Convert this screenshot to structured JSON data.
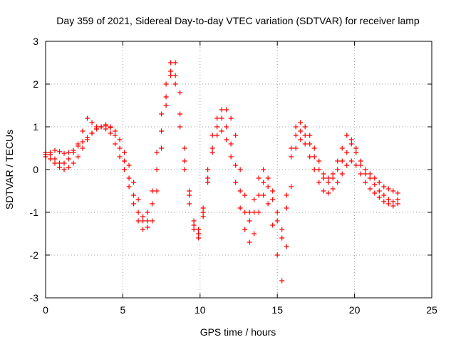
{
  "chart_data": {
    "type": "scatter",
    "title": "Day 359 of 2021, Sidereal Day-to-day VTEC variation (SDTVAR) for receiver lamp",
    "xlabel": "GPS time / hours",
    "ylabel": "SDTVAR / TECUs",
    "xlim": [
      0,
      25
    ],
    "ylim": [
      -3,
      3
    ],
    "xticks": [
      0,
      5,
      10,
      15,
      20,
      25
    ],
    "yticks": [
      -3,
      -2,
      -1,
      0,
      1,
      2,
      3
    ],
    "xtick_labels": [
      "0",
      "5",
      "10",
      "15",
      "20",
      "25"
    ],
    "ytick_labels": [
      "-3",
      "-2",
      "-1",
      "0",
      "1",
      "2",
      "3"
    ],
    "grid": true,
    "legend": "none",
    "marker": "+",
    "color": "#ff0000",
    "series": [
      {
        "x": [
          0.0,
          0.3,
          0.6,
          0.9,
          1.2,
          1.5,
          1.8,
          2.1,
          2.4,
          2.7,
          3.0,
          3.3,
          3.6,
          3.9,
          4.2,
          4.5,
          4.8,
          5.1,
          5.4,
          5.7,
          6.0,
          6.3,
          6.6,
          6.9,
          7.2,
          7.5,
          7.8,
          8.1,
          8.4,
          8.7,
          9.0,
          9.3,
          9.6,
          9.9,
          10.2,
          10.5,
          10.8,
          11.1,
          11.4,
          11.7,
          12.0,
          12.3,
          12.6,
          12.9,
          13.2,
          13.5,
          13.8,
          14.1,
          14.4,
          14.7,
          15.0,
          15.3,
          15.6,
          15.9,
          16.2,
          16.5,
          16.8,
          17.1,
          17.4,
          17.7,
          18.0,
          18.3,
          18.6,
          18.9,
          19.2,
          19.5,
          19.8,
          20.1,
          20.4,
          20.7,
          21.0,
          21.3,
          21.6,
          21.9,
          22.2,
          22.5,
          22.8
        ],
        "y": [
          0.35,
          0.4,
          0.45,
          0.42,
          0.38,
          0.4,
          0.45,
          0.55,
          0.65,
          0.75,
          0.85,
          0.95,
          1.0,
          1.02,
          0.98,
          0.9,
          0.7,
          0.4,
          0.1,
          -0.3,
          -0.7,
          -1.1,
          -1.35,
          -1.2,
          -0.5,
          0.5,
          1.5,
          2.2,
          2.5,
          1.8,
          0.5,
          -0.5,
          -1.2,
          -1.5,
          -1.1,
          -0.3,
          0.5,
          1.0,
          1.2,
          1.0,
          0.6,
          0.1,
          -0.5,
          -1.0,
          -1.2,
          -1.0,
          -0.6,
          -0.3,
          -0.4,
          -0.7,
          -1.2,
          -1.6,
          -0.9,
          0.3,
          0.8,
          0.9,
          0.8,
          0.6,
          0.3,
          0.0,
          -0.2,
          -0.3,
          -0.2,
          0.0,
          0.2,
          0.4,
          0.6,
          0.5,
          0.2,
          0.0,
          -0.1,
          -0.2,
          -0.3,
          -0.4,
          -0.45,
          -0.5,
          -0.55
        ]
      },
      {
        "x": [
          0.0,
          0.3,
          0.6,
          0.9,
          1.2,
          1.5,
          1.8,
          2.1,
          2.4,
          2.7,
          3.0,
          3.3,
          3.6,
          3.9,
          4.2,
          4.5,
          4.8,
          5.1,
          5.4,
          5.7,
          6.0,
          6.3,
          6.6,
          6.9,
          7.2,
          7.5,
          7.8,
          8.1,
          8.4,
          8.7,
          9.0,
          9.3,
          9.6,
          9.9,
          10.2,
          10.5,
          10.8,
          11.1,
          11.4,
          11.7,
          12.0,
          12.3,
          12.6,
          12.9,
          13.2,
          13.5,
          13.8,
          14.1,
          14.4,
          14.7,
          15.0,
          15.3,
          15.6,
          15.9,
          16.2,
          16.5,
          16.8,
          17.1,
          17.4,
          17.7,
          18.0,
          18.3,
          18.6,
          18.9,
          19.2,
          19.5,
          19.8,
          20.1,
          20.4,
          20.7,
          21.0,
          21.3,
          21.6,
          21.9,
          22.2,
          22.5,
          22.8
        ],
        "y": [
          0.3,
          0.25,
          0.15,
          0.05,
          0.0,
          0.05,
          0.15,
          0.3,
          0.5,
          0.7,
          0.85,
          0.95,
          1.0,
          0.95,
          0.85,
          0.6,
          0.3,
          0.0,
          -0.4,
          -0.8,
          -1.2,
          -1.4,
          -1.2,
          -0.8,
          0.0,
          0.9,
          1.7,
          2.3,
          2.0,
          1.0,
          0.0,
          -0.8,
          -1.4,
          -1.6,
          -1.0,
          -0.2,
          0.4,
          0.8,
          0.9,
          0.7,
          0.3,
          -0.3,
          -0.9,
          -1.4,
          -1.7,
          -1.5,
          -1.0,
          -0.6,
          -0.8,
          -1.3,
          -2.0,
          -2.6,
          -1.8,
          -0.4,
          0.5,
          0.7,
          0.6,
          0.3,
          0.0,
          -0.3,
          -0.5,
          -0.55,
          -0.45,
          -0.3,
          -0.1,
          0.1,
          0.2,
          0.1,
          -0.1,
          -0.3,
          -0.45,
          -0.55,
          -0.65,
          -0.75,
          -0.8,
          -0.85,
          -0.8
        ]
      },
      {
        "x": [
          0.0,
          0.3,
          0.6,
          0.9,
          1.2,
          1.5,
          1.8,
          2.1,
          2.4,
          2.7,
          3.0,
          3.3,
          3.6,
          3.9,
          4.2,
          4.5,
          4.8,
          5.1,
          5.4,
          5.7,
          6.0,
          6.3,
          6.6,
          6.9,
          7.2,
          7.5,
          7.8,
          8.1,
          8.4,
          8.7,
          9.0,
          9.3,
          9.6,
          9.9,
          10.2,
          10.5,
          10.8,
          11.1,
          11.4,
          11.7,
          12.0,
          12.3,
          12.6,
          12.9,
          13.2,
          13.5,
          13.8,
          14.1,
          14.4,
          14.7,
          15.0,
          15.3,
          15.6,
          15.9,
          16.2,
          16.5,
          16.8,
          17.1,
          17.4,
          17.7,
          18.0,
          18.3,
          18.6,
          18.9,
          19.2,
          19.5,
          19.8,
          20.1,
          20.4,
          20.7,
          21.0,
          21.3,
          21.6,
          21.9,
          22.2,
          22.5,
          22.8
        ],
        "y": [
          0.4,
          0.35,
          0.25,
          0.15,
          0.15,
          0.25,
          0.4,
          0.6,
          0.9,
          1.2,
          1.1,
          1.0,
          1.0,
          1.05,
          1.0,
          0.8,
          0.5,
          0.2,
          -0.2,
          -0.6,
          -1.0,
          -1.2,
          -1.0,
          -0.5,
          0.4,
          1.3,
          2.0,
          2.5,
          2.2,
          1.3,
          0.2,
          -0.6,
          -1.3,
          -1.4,
          -0.9,
          0.0,
          0.8,
          1.2,
          1.4,
          1.4,
          1.2,
          0.8,
          0.0,
          -0.6,
          -1.0,
          -0.7,
          -0.2,
          0.0,
          -0.2,
          -0.5,
          -1.0,
          -1.4,
          -0.6,
          0.5,
          1.0,
          1.1,
          1.0,
          0.8,
          0.5,
          0.2,
          -0.1,
          -0.2,
          -0.1,
          0.2,
          0.5,
          0.8,
          0.7,
          0.4,
          0.1,
          -0.1,
          -0.2,
          -0.35,
          -0.5,
          -0.6,
          -0.7,
          -0.75,
          -0.7
        ]
      }
    ]
  }
}
